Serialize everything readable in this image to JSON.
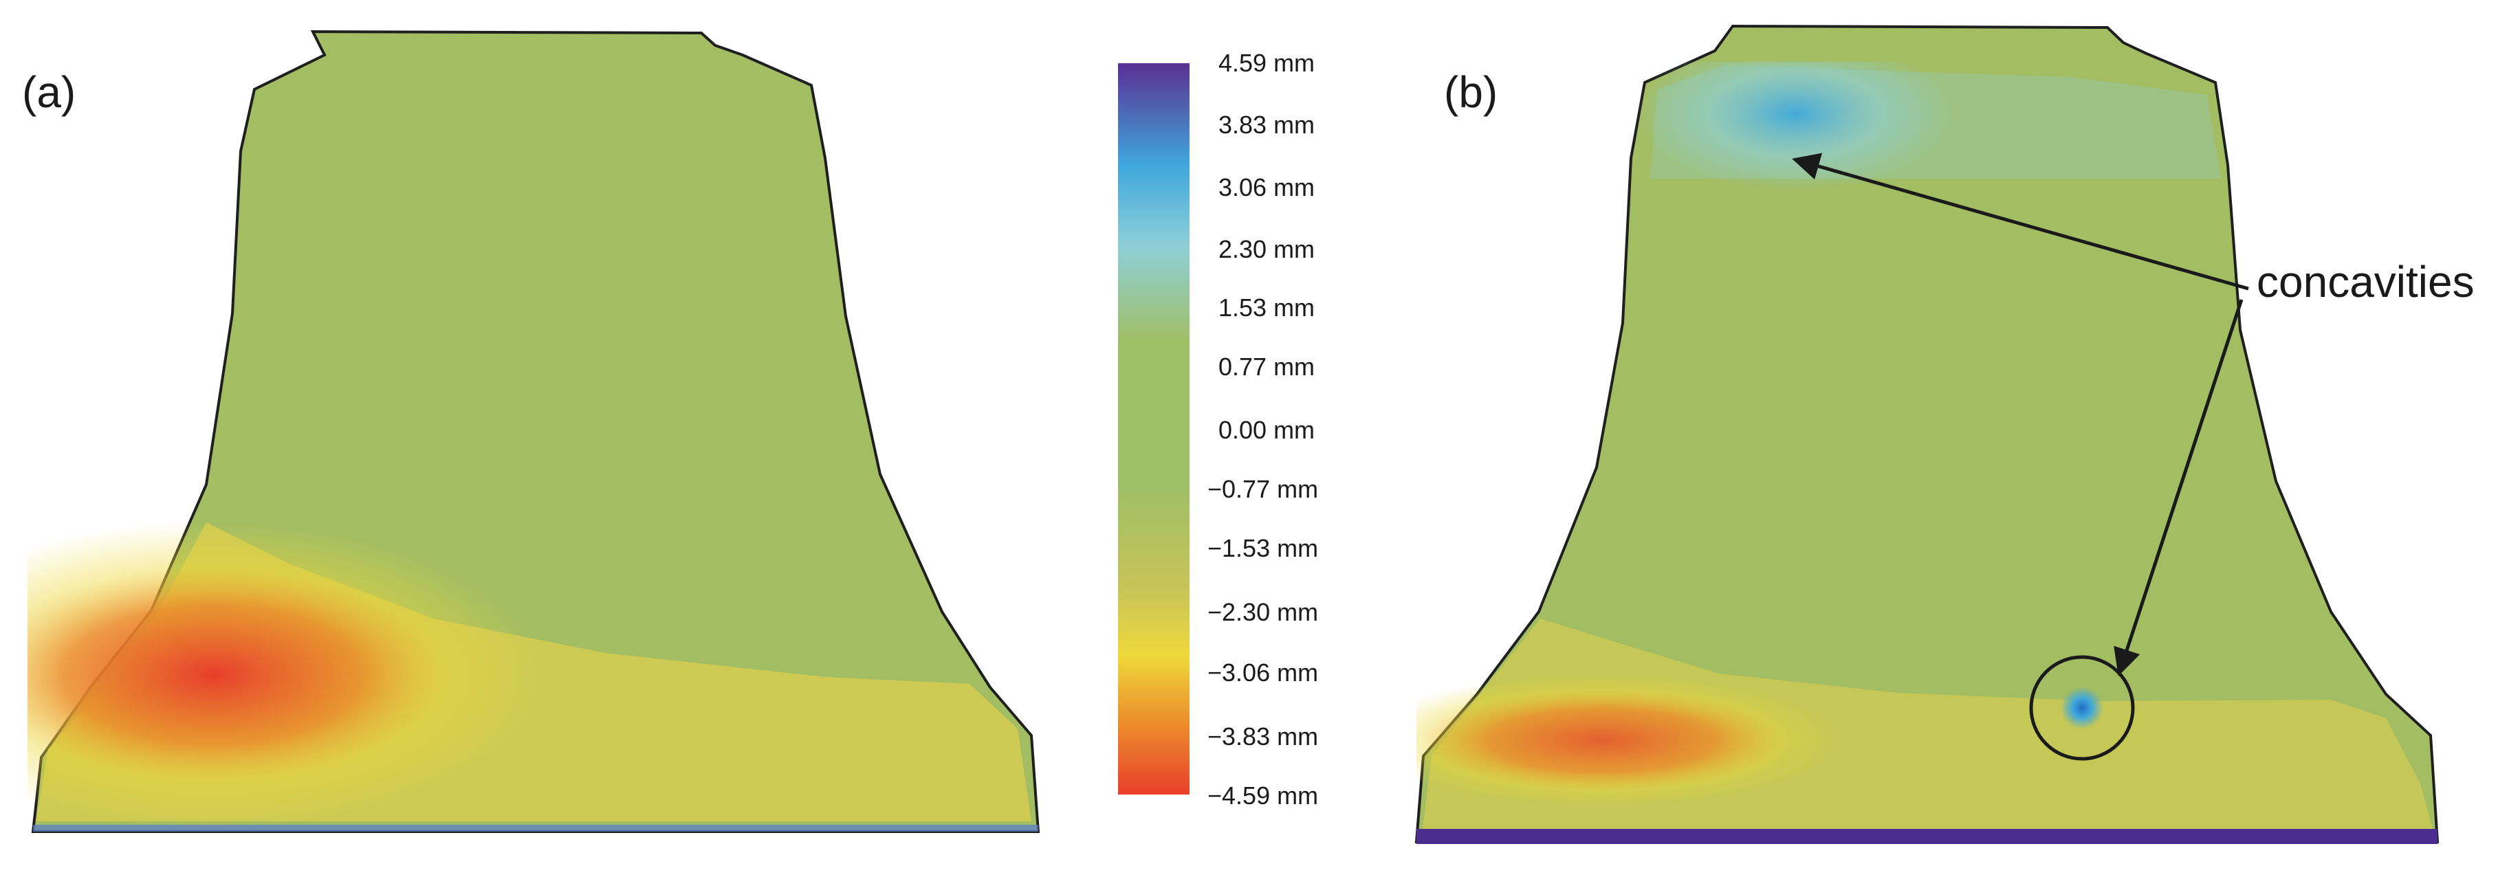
{
  "figure": {
    "panels": [
      {
        "id": "a",
        "label": "(a)"
      },
      {
        "id": "b",
        "label": "(b)"
      }
    ],
    "color_scale": {
      "unit": "mm",
      "labels": [
        "4.59 mm",
        "3.83 mm",
        "3.06 mm",
        "2.30 mm",
        "1.53 mm",
        "0.77 mm",
        "0.00 mm",
        "−0.77 mm",
        "−1.53 mm",
        "−2.30 mm",
        "−3.06 mm",
        "−3.83 mm",
        "−4.59 mm"
      ],
      "max": 4.59,
      "min": -4.59,
      "colors": {
        "top": "#5a2f93",
        "blue": "#3fa8dc",
        "light_blue": "#8ecfd8",
        "green": "#9fbf66",
        "yellow_green": "#c8c458",
        "yellow": "#eed83a",
        "orange": "#ec8f2c",
        "red": "#e83f2c"
      }
    },
    "annotation": {
      "text": "concavities"
    },
    "bell_colors": {
      "outline": "#1f1f1f",
      "base_green": "#a3bd63",
      "yellow_zone": "#dfcf4f",
      "red_zone": "#e64a2d",
      "blue_zone": "#56b3df",
      "purple_rim": "#4b2c8f"
    }
  }
}
